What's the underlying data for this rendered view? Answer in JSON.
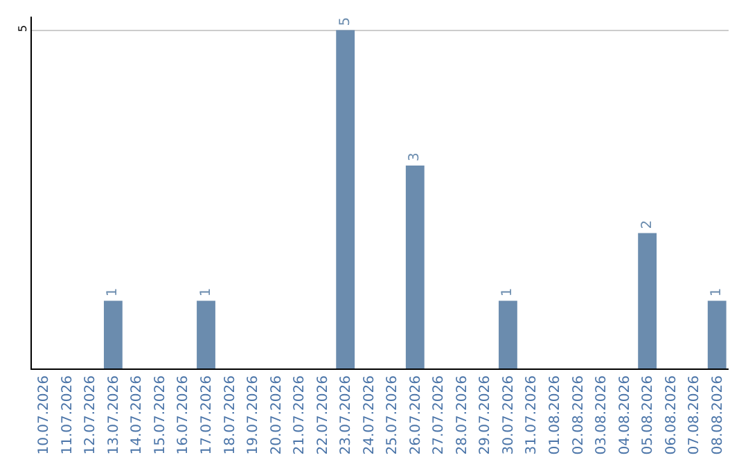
{
  "chart_data": {
    "type": "bar",
    "categories": [
      "10.07.2026",
      "11.07.2026",
      "12.07.2026",
      "13.07.2026",
      "14.07.2026",
      "15.07.2026",
      "16.07.2026",
      "17.07.2026",
      "18.07.2026",
      "19.07.2026",
      "20.07.2026",
      "21.07.2026",
      "22.07.2026",
      "23.07.2026",
      "24.07.2026",
      "25.07.2026",
      "26.07.2026",
      "27.07.2026",
      "28.07.2026",
      "29.07.2026",
      "30.07.2026",
      "31.07.2026",
      "01.08.2026",
      "02.08.2026",
      "03.08.2026",
      "04.08.2026",
      "05.08.2026",
      "06.08.2026",
      "07.08.2026",
      "08.08.2026"
    ],
    "values": [
      0,
      0,
      0,
      1,
      0,
      0,
      0,
      1,
      0,
      0,
      0,
      0,
      0,
      5,
      0,
      0,
      3,
      0,
      0,
      0,
      1,
      0,
      0,
      0,
      0,
      0,
      2,
      0,
      0,
      1
    ],
    "value_labels": [
      null,
      null,
      null,
      "1",
      null,
      null,
      null,
      "1",
      null,
      null,
      null,
      null,
      null,
      "5",
      null,
      null,
      "3",
      null,
      null,
      null,
      "1",
      null,
      null,
      null,
      null,
      null,
      "2",
      null,
      null,
      "1"
    ],
    "color": "#6b8cae",
    "ylim": [
      0,
      5.2
    ],
    "yticks": [
      5
    ],
    "grid": "y"
  }
}
